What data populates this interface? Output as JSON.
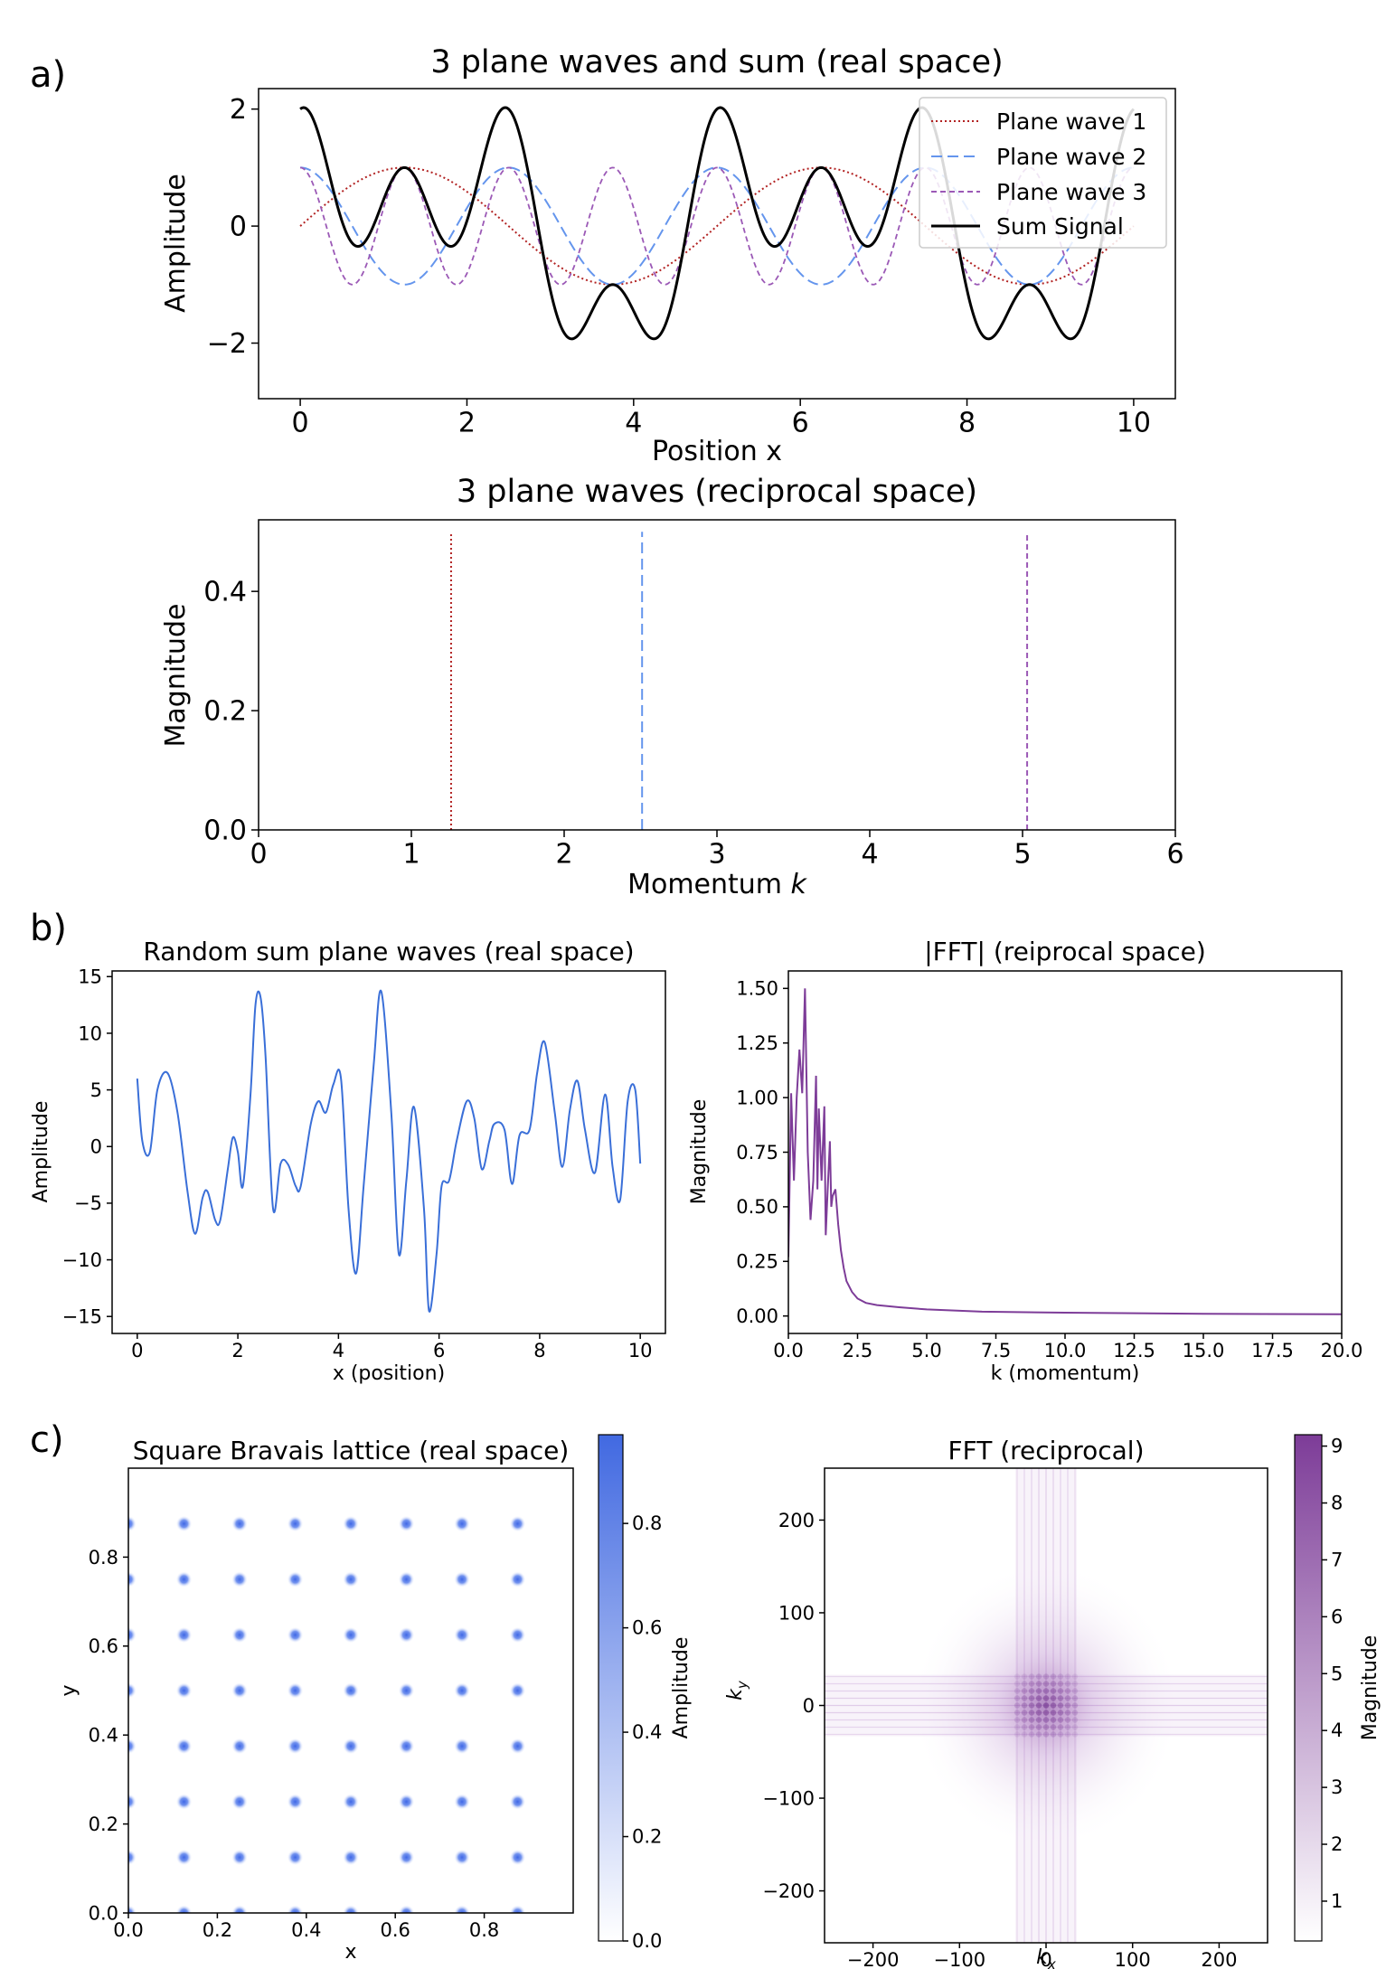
{
  "panel_labels": [
    "a)",
    "b)",
    "c)"
  ],
  "colors": {
    "wave1": "#b22222",
    "wave2": "#6495ed",
    "wave3": "#9b59b6",
    "sum": "#000000",
    "random_sum": "#3a6fd8",
    "fft": "#7d3c98",
    "lattice_cmap_high": "#4169e1",
    "fft_cmap_high": "#7d3c98"
  },
  "chart_data": [
    {
      "id": "a1",
      "type": "line",
      "title": "3 plane waves and sum (real space)",
      "xlabel": "Position x",
      "ylabel": "Amplitude",
      "xlim": [
        -0.5,
        10.5
      ],
      "ylim": [
        -2.95,
        2.35
      ],
      "xticks": [
        0,
        2,
        4,
        6,
        8,
        10
      ],
      "xticklabels": [
        "0",
        "2",
        "4",
        "6",
        "8",
        "10"
      ],
      "yticks": [
        -2,
        0,
        2
      ],
      "yticklabels": [
        "−2",
        "0",
        "2"
      ],
      "legend_position": "top-right",
      "series": [
        {
          "name": "Plane wave 1",
          "k": 1.2566,
          "phase": "sin",
          "style": "dotted",
          "color_key": "wave1"
        },
        {
          "name": "Plane wave 2",
          "k": 2.5133,
          "phase": "cos",
          "style": "dashed",
          "color_key": "wave2"
        },
        {
          "name": "Plane wave 3",
          "k": 5.0265,
          "phase": "cos",
          "style": "dashed-fine",
          "color_key": "wave3"
        },
        {
          "name": "Sum Signal",
          "style": "solid",
          "color_key": "sum"
        }
      ]
    },
    {
      "id": "a2",
      "type": "bar",
      "title": "3 plane waves (reciprocal space)",
      "xlabel": "Momentum k",
      "ylabel": "Magnitude",
      "xlim": [
        0,
        6
      ],
      "ylim": [
        0,
        0.52
      ],
      "xticks": [
        0,
        1,
        2,
        3,
        4,
        5,
        6
      ],
      "xticklabels": [
        "0",
        "1",
        "2",
        "3",
        "4",
        "5",
        "6"
      ],
      "yticks": [
        0,
        0.2,
        0.4
      ],
      "yticklabels": [
        "0.0",
        "0.2",
        "0.4"
      ],
      "lines": [
        {
          "x": 1.26,
          "value": 0.5,
          "style": "dotted",
          "color_key": "wave1"
        },
        {
          "x": 2.51,
          "value": 0.5,
          "style": "dashed",
          "color_key": "wave2"
        },
        {
          "x": 5.03,
          "value": 0.5,
          "style": "dashed-fine",
          "color_key": "wave3"
        }
      ]
    },
    {
      "id": "b1",
      "type": "line",
      "title": "Random sum plane waves (real space)",
      "xlabel": "x (position)",
      "ylabel": "Amplitude",
      "xlim": [
        -0.5,
        10.5
      ],
      "ylim": [
        -16.5,
        15.5
      ],
      "xticks": [
        0,
        2,
        4,
        6,
        8,
        10
      ],
      "xticklabels": [
        "0",
        "2",
        "4",
        "6",
        "8",
        "10"
      ],
      "yticks": [
        -15,
        -10,
        -5,
        0,
        5,
        10,
        15
      ],
      "yticklabels": [
        "−15",
        "−10",
        "−5",
        "0",
        "5",
        "10",
        "15"
      ],
      "x": [
        0,
        0.1,
        0.25,
        0.4,
        0.6,
        0.8,
        1.0,
        1.15,
        1.3,
        1.4,
        1.55,
        1.65,
        1.8,
        1.9,
        2.0,
        2.1,
        2.25,
        2.35,
        2.45,
        2.55,
        2.7,
        2.85,
        3.0,
        3.15,
        3.25,
        3.45,
        3.6,
        3.75,
        3.9,
        4.05,
        4.2,
        4.35,
        4.5,
        4.7,
        4.85,
        5.05,
        5.2,
        5.35,
        5.5,
        5.7,
        5.8,
        5.95,
        6.05,
        6.2,
        6.35,
        6.55,
        6.7,
        6.85,
        7.0,
        7.1,
        7.3,
        7.45,
        7.6,
        7.8,
        7.95,
        8.1,
        8.3,
        8.45,
        8.6,
        8.75,
        8.9,
        9.1,
        9.3,
        9.45,
        9.6,
        9.75,
        9.9,
        10.0
      ],
      "values": [
        6,
        0.5,
        -0.5,
        5,
        6.5,
        3,
        -4,
        -7.7,
        -4.5,
        -4,
        -6.5,
        -6.5,
        -2,
        0.8,
        -0.5,
        -3.5,
        4.5,
        12.5,
        13.2,
        8,
        -5.5,
        -1.5,
        -1.6,
        -3.5,
        -3.5,
        2,
        4,
        3,
        5.5,
        6,
        -5.5,
        -11.2,
        -3.5,
        7.2,
        13.7,
        3,
        -9.5,
        -3,
        3.5,
        -5.5,
        -14.5,
        -9.5,
        -3.5,
        -3,
        0.5,
        4,
        2.5,
        -2,
        0.5,
        2,
        1.5,
        -3.3,
        1,
        1.5,
        6.5,
        9.2,
        3,
        -1.8,
        3.2,
        5.8,
        1.5,
        -2.3,
        4.6,
        -1.8,
        -4.7,
        4,
        5,
        -1.5
      ],
      "series": [
        {
          "color_key": "random_sum"
        }
      ]
    },
    {
      "id": "b2",
      "type": "line",
      "title": "|FFT| (reiprocal space)",
      "xlabel": "k (momentum)",
      "ylabel": "Magnitude",
      "xlim": [
        0,
        20
      ],
      "ylim": [
        -0.08,
        1.58
      ],
      "xticks": [
        0,
        2.5,
        5,
        7.5,
        10,
        12.5,
        15,
        17.5,
        20
      ],
      "xticklabels": [
        "0.0",
        "2.5",
        "5.0",
        "7.5",
        "10.0",
        "12.5",
        "15.0",
        "17.5",
        "20.0"
      ],
      "yticks": [
        0,
        0.25,
        0.5,
        0.75,
        1,
        1.25,
        1.5
      ],
      "yticklabels": [
        "0.00",
        "0.25",
        "0.50",
        "0.75",
        "1.00",
        "1.25",
        "1.50"
      ],
      "x": [
        0,
        0.1,
        0.2,
        0.3,
        0.4,
        0.5,
        0.6,
        0.7,
        0.8,
        0.9,
        1.0,
        1.05,
        1.1,
        1.2,
        1.3,
        1.35,
        1.4,
        1.5,
        1.55,
        1.6,
        1.7,
        1.8,
        1.9,
        2.0,
        2.1,
        2.3,
        2.5,
        2.8,
        3.2,
        4,
        5,
        7,
        10,
        15,
        20
      ],
      "values": [
        0.27,
        1.02,
        0.62,
        1.0,
        1.22,
        1.02,
        1.5,
        0.75,
        0.44,
        0.62,
        1.1,
        0.58,
        0.95,
        0.62,
        0.96,
        0.37,
        0.52,
        0.8,
        0.5,
        0.55,
        0.58,
        0.42,
        0.3,
        0.22,
        0.16,
        0.11,
        0.08,
        0.06,
        0.05,
        0.04,
        0.03,
        0.02,
        0.015,
        0.01,
        0.008
      ],
      "series": [
        {
          "color_key": "fft"
        }
      ]
    },
    {
      "id": "c1",
      "type": "heatmap",
      "title": "Square Bravais lattice (real space)",
      "xlabel": "x",
      "ylabel": "y",
      "xlim": [
        0,
        1
      ],
      "ylim": [
        0,
        1
      ],
      "xticks": [
        0,
        0.2,
        0.4,
        0.6,
        0.8
      ],
      "xticklabels": [
        "0.0",
        "0.2",
        "0.4",
        "0.6",
        "0.8"
      ],
      "yticks": [
        0,
        0.2,
        0.4,
        0.6,
        0.8
      ],
      "yticklabels": [
        "0.0",
        "0.2",
        "0.4",
        "0.6",
        "0.8"
      ],
      "lattice_period": 0.125,
      "lattice_count": 8,
      "colorbar": {
        "label": "Amplitude",
        "range": [
          0,
          0.97
        ],
        "ticks": [
          0,
          0.2,
          0.4,
          0.6,
          0.8
        ],
        "ticklabels": [
          "0.0",
          "0.2",
          "0.4",
          "0.6",
          "0.8"
        ],
        "color_key": "lattice_cmap_high"
      }
    },
    {
      "id": "c2",
      "type": "heatmap",
      "title": "FFT (reciprocal)",
      "xlabel": "k_x",
      "ylabel": "k_y",
      "xlim": [
        -256,
        256
      ],
      "ylim": [
        -256,
        256
      ],
      "xticks": [
        -200,
        -100,
        0,
        100,
        200
      ],
      "xticklabels": [
        "−200",
        "−100",
        "0",
        "100",
        "200"
      ],
      "yticks": [
        -200,
        -100,
        0,
        100,
        200
      ],
      "yticklabels": [
        "−200",
        "−100",
        "0",
        "100",
        "200"
      ],
      "central_peak": 9.2,
      "colorbar": {
        "label": "Magnitude",
        "range": [
          0.3,
          9.2
        ],
        "ticks": [
          1,
          2,
          3,
          4,
          5,
          6,
          7,
          8,
          9
        ],
        "ticklabels": [
          "1",
          "2",
          "3",
          "4",
          "5",
          "6",
          "7",
          "8",
          "9"
        ],
        "color_key": "fft_cmap_high"
      }
    }
  ]
}
